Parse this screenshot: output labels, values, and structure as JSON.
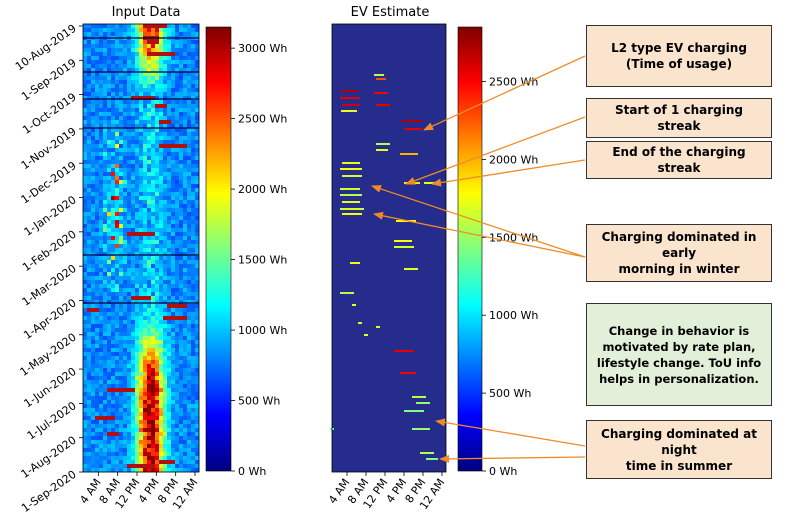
{
  "chart_data": [
    {
      "type": "heatmap",
      "title": "Input Data",
      "x_tick_labels": [
        "4 AM",
        "8 AM",
        "12 PM",
        "4 PM",
        "8 PM",
        "12 AM"
      ],
      "y_tick_labels": [
        "10-Aug-2019",
        "1-Sep-2019",
        "1-Oct-2019",
        "1-Nov-2019",
        "1-Dec-2019",
        "1-Jan-2020",
        "1-Feb-2020",
        "1-Mar-2020",
        "1-Apr-2020",
        "1-May-2020",
        "1-Jun-2020",
        "1-Jul-2020",
        "1-Aug-2020",
        "1-Sep-2020"
      ],
      "colorbar_ticks": [
        "0 Wh",
        "500 Wh",
        "1000 Wh",
        "1500 Wh",
        "2000 Wh",
        "2500 Wh",
        "3000 Wh"
      ],
      "colorbar_range": [
        0,
        3150
      ],
      "colormap": "jet",
      "seasonal_profile": [
        {
          "period": "Aug-Sep 2019",
          "peak_hours": [
            13,
            17
          ],
          "peak_wh": 3000
        },
        {
          "period": "Nov 2019 - Mar 2020",
          "peak_hours": [
            6,
            9
          ],
          "peak_wh": 2800
        },
        {
          "period": "Jul-Aug 2020",
          "peak_hours": [
            13,
            18
          ],
          "peak_wh": 3100
        }
      ]
    },
    {
      "type": "heatmap",
      "title": "EV Estimate",
      "x_tick_labels": [
        "4 AM",
        "8 AM",
        "12 PM",
        "4 PM",
        "8 PM",
        "12 AM"
      ],
      "colorbar_ticks": [
        "0 Wh",
        "500 Wh",
        "1000 Wh",
        "1500 Wh",
        "2000 Wh",
        "2500 Wh"
      ],
      "colorbar_range": [
        0,
        2850
      ],
      "colormap": "jet"
    }
  ],
  "annotations": [
    {
      "text": "L2 type EV charging\n(Time of usage)",
      "style": "peach"
    },
    {
      "text": "Start of 1 charging streak",
      "style": "peach"
    },
    {
      "text": "End of the charging streak",
      "style": "peach"
    },
    {
      "text": "Charging dominated in early\nmorning in winter",
      "style": "peach"
    },
    {
      "text": "Change in behavior is\nmotivated by rate plan,\nlifestyle change. ToU info\nhelps in personalization.",
      "style": "green"
    },
    {
      "text": "Charging dominated at night\ntime in summer",
      "style": "peach"
    }
  ],
  "colors": {
    "arrow": "#f08c28",
    "peach": "#fbe4cd",
    "green": "#e2efd9",
    "background": "#262c8c"
  }
}
